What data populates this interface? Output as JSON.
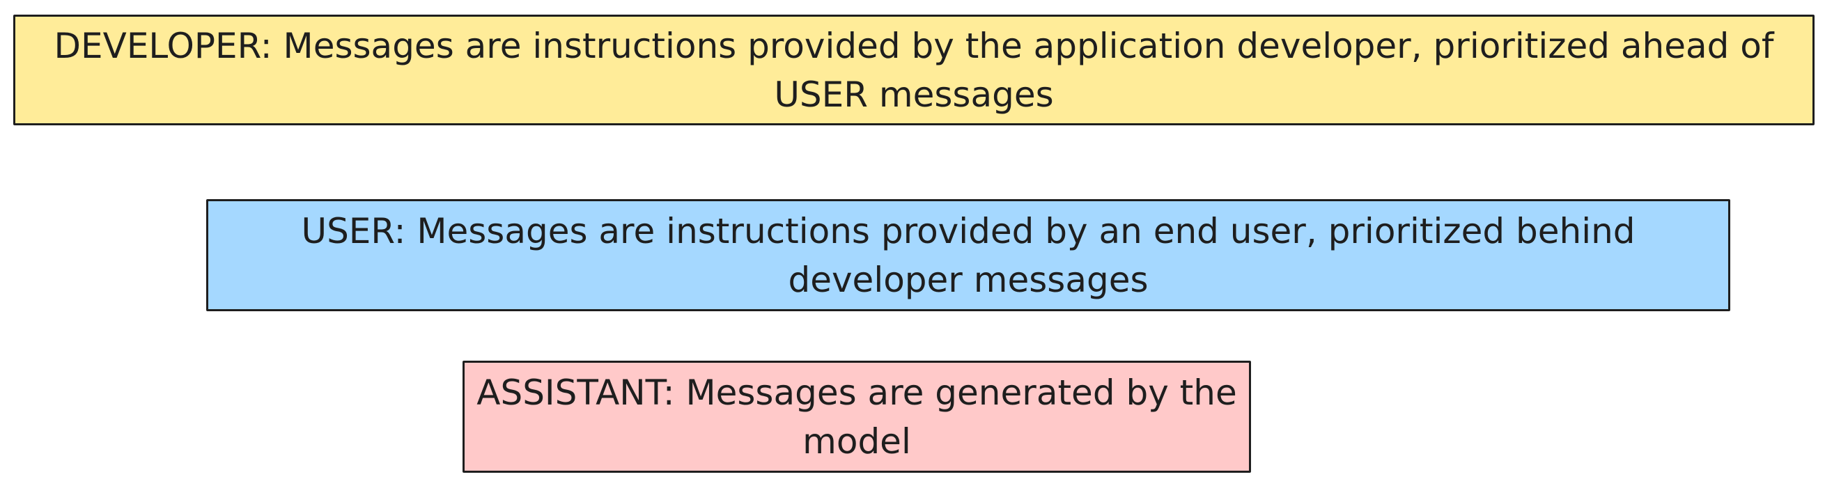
{
  "boxes": {
    "developer": {
      "text": "DEVELOPER: Messages are instructions provided by the application developer, prioritized ahead of USER messages",
      "color": "#ffec99"
    },
    "user": {
      "text": "USER: Messages are instructions provided by an end user, prioritized behind developer messages",
      "color": "#a5d8ff"
    },
    "assistant": {
      "text": "ASSISTANT: Messages are generated by the model",
      "color": "#ffc9c9"
    }
  }
}
